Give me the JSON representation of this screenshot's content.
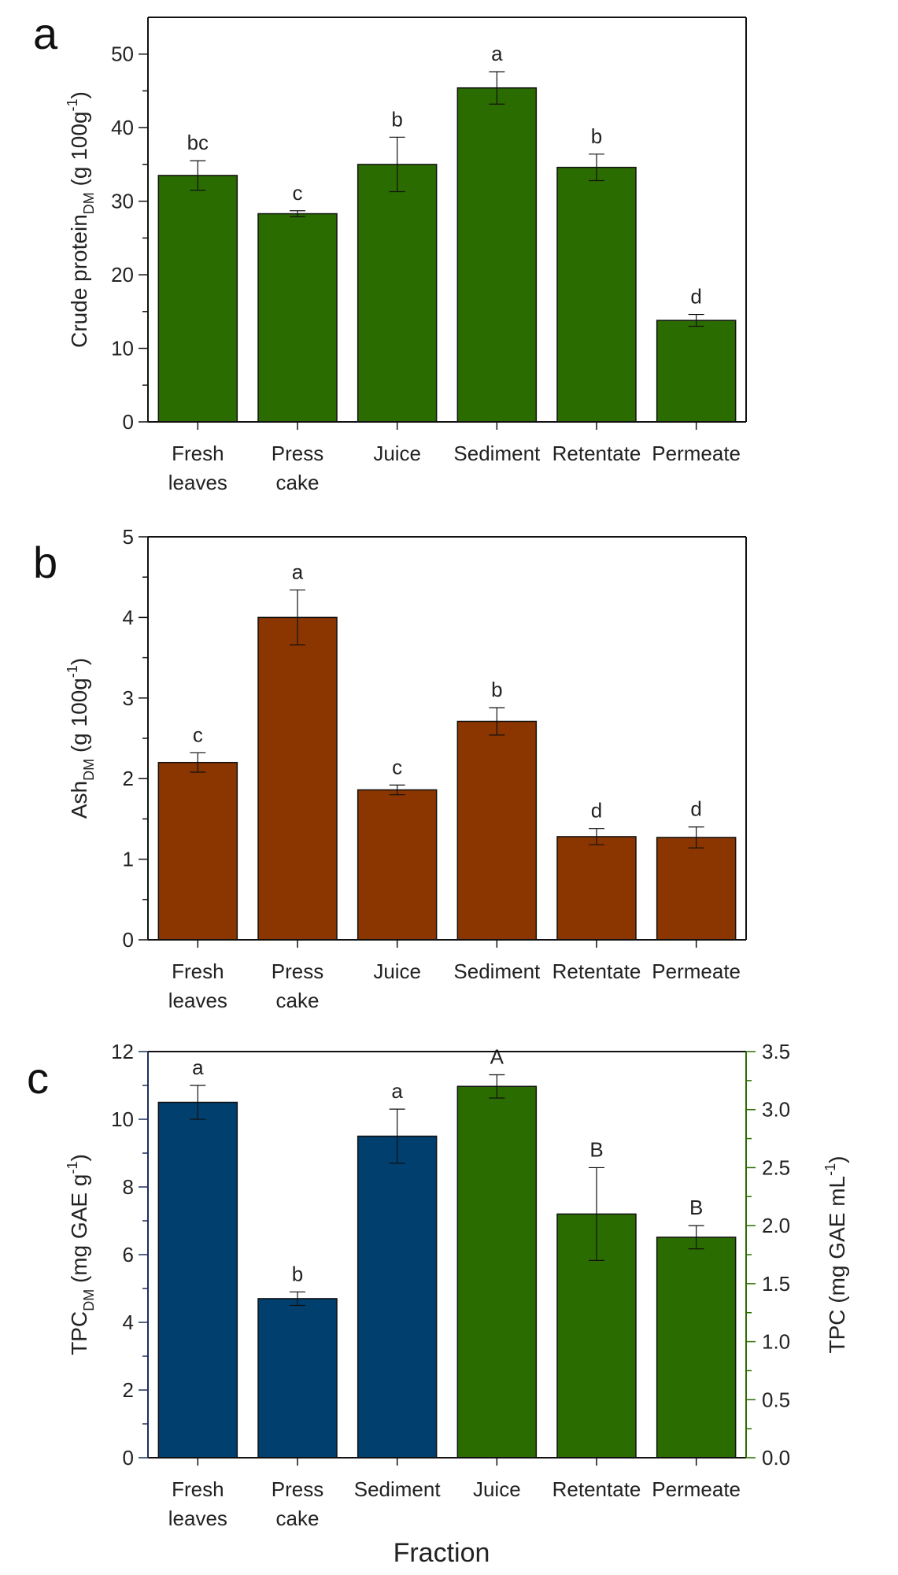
{
  "figure": {
    "x_title": "Fraction"
  },
  "chart_data": [
    {
      "type": "bar",
      "panel": "a",
      "categories": [
        [
          "Fresh",
          "leaves"
        ],
        [
          "Press",
          "cake"
        ],
        [
          "Juice"
        ],
        [
          "Sediment"
        ],
        [
          "Retentate"
        ],
        [
          "Permeate"
        ]
      ],
      "values": [
        33.5,
        28.3,
        35.0,
        45.4,
        34.6,
        13.8
      ],
      "errors": [
        2.0,
        0.4,
        3.7,
        2.2,
        1.8,
        0.8
      ],
      "significance": [
        "bc",
        "c",
        "b",
        "a",
        "b",
        "d"
      ],
      "ylabel_main": "Crude protein",
      "ylabel_sub": "DM",
      "ylabel_unit_pre": " (g 100g",
      "ylabel_unit_sup": "-1",
      "ylabel_unit_post": ")",
      "ylim": [
        0,
        55
      ],
      "yticks": [
        0,
        10,
        20,
        30,
        40,
        50
      ],
      "ytick_labels": [
        "0",
        "10",
        "20",
        "30",
        "40",
        "50"
      ],
      "bar_color": "#2b6c00"
    },
    {
      "type": "bar",
      "panel": "b",
      "categories": [
        [
          "Fresh",
          "leaves"
        ],
        [
          "Press",
          "cake"
        ],
        [
          "Juice"
        ],
        [
          "Sediment"
        ],
        [
          "Retentate"
        ],
        [
          "Permeate"
        ]
      ],
      "values": [
        2.2,
        4.0,
        1.86,
        2.71,
        1.28,
        1.27
      ],
      "errors": [
        0.12,
        0.34,
        0.06,
        0.17,
        0.1,
        0.13
      ],
      "significance": [
        "c",
        "a",
        "c",
        "b",
        "d",
        "d"
      ],
      "ylabel_main": "Ash",
      "ylabel_sub": "DM",
      "ylabel_unit_pre": " (g 100g",
      "ylabel_unit_sup": "-1",
      "ylabel_unit_post": ")",
      "ylim": [
        0,
        5
      ],
      "yticks": [
        0,
        1,
        2,
        3,
        4,
        5
      ],
      "ytick_labels": [
        "0",
        "1",
        "2",
        "3",
        "4",
        "5"
      ],
      "bar_color": "#8b3600"
    },
    {
      "type": "bar",
      "panel": "c",
      "categories": [
        [
          "Fresh",
          "leaves"
        ],
        [
          "Press",
          "cake"
        ],
        [
          "Sediment"
        ],
        [
          "Juice"
        ],
        [
          "Retentate"
        ],
        [
          "Permeate"
        ]
      ],
      "values": [
        10.5,
        4.7,
        9.5,
        3.2,
        2.1,
        1.9
      ],
      "errors": [
        0.5,
        0.2,
        0.8,
        0.1,
        0.4,
        0.1
      ],
      "axis": [
        "left",
        "left",
        "left",
        "right",
        "right",
        "right"
      ],
      "significance": [
        "a",
        "b",
        "a",
        "A",
        "B",
        "B"
      ],
      "ylabel_main": "TPC",
      "ylabel_sub": "DM",
      "ylabel_unit_pre": " (mg GAE g",
      "ylabel_unit_sup": "-1",
      "ylabel_unit_post": ")",
      "ylim": [
        0,
        12
      ],
      "yticks": [
        0,
        2,
        4,
        6,
        8,
        10,
        12
      ],
      "ytick_labels": [
        "0",
        "2",
        "4",
        "6",
        "8",
        "10",
        "12"
      ],
      "y2label_main": "TPC",
      "y2label_unit_pre": "  (mg GAE mL",
      "y2label_unit_sup": "-1",
      "y2label_unit_post": ")",
      "y2lim": [
        0,
        3.5
      ],
      "y2ticks": [
        0,
        0.5,
        1.0,
        1.5,
        2.0,
        2.5,
        3.0,
        3.5
      ],
      "y2tick_labels": [
        "0.0",
        "0.5",
        "1.0",
        "1.5",
        "2.0",
        "2.5",
        "3.0",
        "3.5"
      ],
      "left_color": "#003f6e",
      "right_color": "#2b6c00",
      "left_axis_color": "#1a2f5a",
      "right_axis_color": "#2b6c00"
    }
  ]
}
